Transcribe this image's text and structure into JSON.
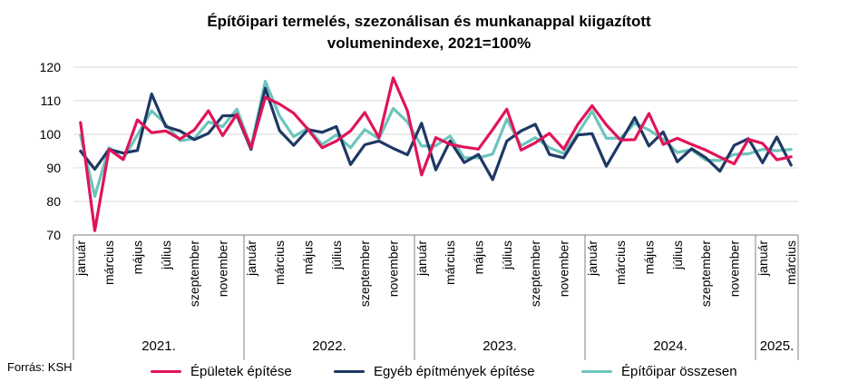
{
  "title_line1": "Építőipari termelés, szezonálisan és munkanappal kiigazított",
  "title_line2": "volumenindexe, 2021=100%",
  "source": "Forrás: KSH",
  "colors": {
    "buildings": "#e0145a",
    "other": "#1f3864",
    "total": "#6cc5bd",
    "grid": "#d9d9d9",
    "axis": "#808080"
  },
  "chart_data": {
    "type": "line",
    "title": "Építőipari termelés, szezonálisan és munkanappal kiigazított volumenindexe, 2021=100%",
    "ylim": [
      70,
      120
    ],
    "yticks": [
      70,
      80,
      90,
      100,
      110,
      120
    ],
    "grid": "horizontal",
    "legend_position": "bottom",
    "month_labels": [
      "január",
      "március",
      "május",
      "július",
      "szeptember",
      "november"
    ],
    "years": [
      "2021.",
      "2022.",
      "2023.",
      "2024.",
      "2025."
    ],
    "x": [
      "2021-01",
      "2021-02",
      "2021-03",
      "2021-04",
      "2021-05",
      "2021-06",
      "2021-07",
      "2021-08",
      "2021-09",
      "2021-10",
      "2021-11",
      "2021-12",
      "2022-01",
      "2022-02",
      "2022-03",
      "2022-04",
      "2022-05",
      "2022-06",
      "2022-07",
      "2022-08",
      "2022-09",
      "2022-10",
      "2022-11",
      "2022-12",
      "2023-01",
      "2023-02",
      "2023-03",
      "2023-04",
      "2023-05",
      "2023-06",
      "2023-07",
      "2023-08",
      "2023-09",
      "2023-10",
      "2023-11",
      "2023-12",
      "2024-01",
      "2024-02",
      "2024-03",
      "2024-04",
      "2024-05",
      "2024-06",
      "2024-07",
      "2024-08",
      "2024-09",
      "2024-10",
      "2024-11",
      "2024-12",
      "2025-01",
      "2025-02",
      "2025-03"
    ],
    "series": [
      {
        "name": "Épületek építése",
        "color": "#e0145a",
        "values": [
          103.5,
          71.3,
          95.5,
          92.5,
          104.3,
          100.5,
          101.0,
          98.6,
          101.3,
          107.0,
          99.6,
          106.0,
          96.0,
          111.0,
          109.0,
          106.3,
          101.5,
          96.0,
          98.0,
          101.0,
          106.5,
          99.0,
          116.8,
          107.0,
          87.9,
          99.0,
          97.0,
          96.2,
          95.6,
          101.4,
          107.5,
          95.3,
          97.5,
          100.3,
          95.6,
          103.0,
          108.5,
          102.8,
          98.3,
          98.4,
          106.2,
          97.0,
          98.8,
          97.0,
          95.3,
          93.2,
          91.2,
          98.5,
          97.3,
          92.4,
          93.3
        ]
      },
      {
        "name": "Egyéb építmények építése",
        "color": "#1f3864",
        "values": [
          95.0,
          89.6,
          95.5,
          94.4,
          95.2,
          112.0,
          102.3,
          101.0,
          98.4,
          100.3,
          105.5,
          105.6,
          95.5,
          113.7,
          101.1,
          96.7,
          101.4,
          100.6,
          102.3,
          91.0,
          96.9,
          98.0,
          95.8,
          93.9,
          103.3,
          89.4,
          98.0,
          91.6,
          94.0,
          86.5,
          98.0,
          101.0,
          103.0,
          94.0,
          93.0,
          99.8,
          100.2,
          90.5,
          97.7,
          105.0,
          96.5,
          100.7,
          91.8,
          95.7,
          93.0,
          89.0,
          96.7,
          98.7,
          91.5,
          99.2,
          90.8
        ]
      },
      {
        "name": "Építőipar összesen",
        "color": "#6cc5bd",
        "values": [
          99.7,
          81.5,
          96.0,
          92.6,
          99.8,
          107.0,
          103.0,
          98.1,
          98.7,
          103.7,
          102.3,
          107.5,
          96.2,
          115.8,
          105.5,
          99.3,
          101.8,
          97.0,
          99.8,
          96.0,
          101.4,
          98.7,
          107.7,
          103.7,
          96.5,
          96.6,
          99.5,
          93.0,
          93.0,
          94.1,
          104.5,
          96.6,
          99.0,
          96.0,
          94.3,
          100.3,
          106.9,
          98.8,
          98.9,
          103.3,
          101.3,
          98.5,
          94.6,
          95.4,
          92.3,
          92.2,
          94.0,
          94.2,
          95.5,
          95.1,
          95.5
        ]
      }
    ]
  }
}
